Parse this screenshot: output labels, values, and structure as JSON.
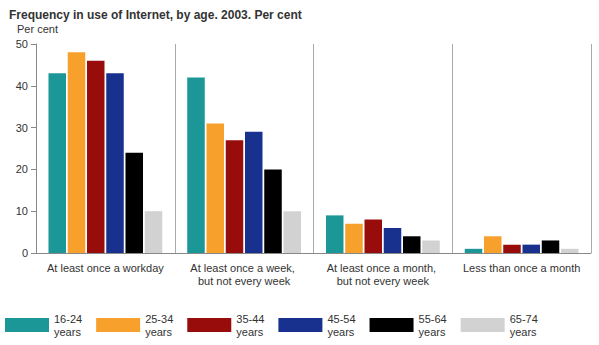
{
  "chart_data": {
    "type": "bar",
    "title": "Frequency in use of Internet, by age. 2003. Per cent",
    "y_label": "Per cent",
    "categories": [
      "At least once a workday",
      "At least once a week, but not every week",
      "At least once a month, but not every week",
      "Less than once a month"
    ],
    "series": [
      {
        "name": "16-24 years",
        "color": "#1b9797",
        "values": [
          43,
          42,
          9,
          1
        ]
      },
      {
        "name": "25-34 years",
        "color": "#f7a12c",
        "values": [
          48,
          31,
          7,
          4
        ]
      },
      {
        "name": "35-44 years",
        "color": "#990c0c",
        "values": [
          46,
          27,
          8,
          2
        ]
      },
      {
        "name": "45-54 years",
        "color": "#18318f",
        "values": [
          43,
          29,
          6,
          2
        ]
      },
      {
        "name": "55-64 years",
        "color": "#000000",
        "values": [
          24,
          20,
          4,
          3
        ]
      },
      {
        "name": "65-74 years",
        "color": "#d2d2d2",
        "values": [
          10,
          10,
          3,
          1
        ]
      }
    ],
    "ylim": [
      0,
      50
    ],
    "yticks": [
      0,
      10,
      20,
      30,
      40,
      50
    ],
    "grid": false,
    "legend": "bottom"
  }
}
